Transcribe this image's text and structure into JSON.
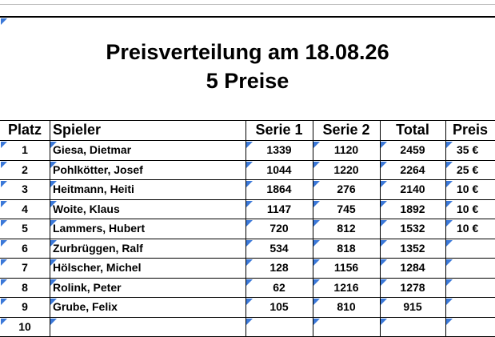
{
  "title": "Preisverteilung am 18.08.26",
  "subtitle": "5 Preise",
  "table": {
    "columns": [
      "Platz",
      "Spieler",
      "Serie 1",
      "Serie 2",
      "Total",
      "Preis"
    ],
    "rows": [
      {
        "platz": 1,
        "spieler": "Giesa, Dietmar",
        "serie1": 1339,
        "serie2": 1120,
        "total": 2459,
        "preis": "35 €"
      },
      {
        "platz": 2,
        "spieler": "Pohlkötter, Josef",
        "serie1": 1044,
        "serie2": 1220,
        "total": 2264,
        "preis": "25 €"
      },
      {
        "platz": 3,
        "spieler": "Heitmann, Heiti",
        "serie1": 1864,
        "serie2": 276,
        "total": 2140,
        "preis": "10 €"
      },
      {
        "platz": 4,
        "spieler": "Woite, Klaus",
        "serie1": 1147,
        "serie2": 745,
        "total": 1892,
        "preis": "10 €"
      },
      {
        "platz": 5,
        "spieler": "Lammers, Hubert",
        "serie1": 720,
        "serie2": 812,
        "total": 1532,
        "preis": "10 €"
      },
      {
        "platz": 6,
        "spieler": "Zurbrüggen, Ralf",
        "serie1": 534,
        "serie2": 818,
        "total": 1352
      },
      {
        "platz": 7,
        "spieler": "Hölscher, Michel",
        "serie1": 128,
        "serie2": 1156,
        "total": 1284
      },
      {
        "platz": 8,
        "spieler": "Rolink, Peter",
        "serie1": 62,
        "serie2": 1216,
        "total": 1278
      },
      {
        "platz": 9,
        "spieler": "Grube, Felix",
        "serie1": 105,
        "serie2": 810,
        "total": 915
      },
      {
        "platz": 10
      }
    ]
  }
}
